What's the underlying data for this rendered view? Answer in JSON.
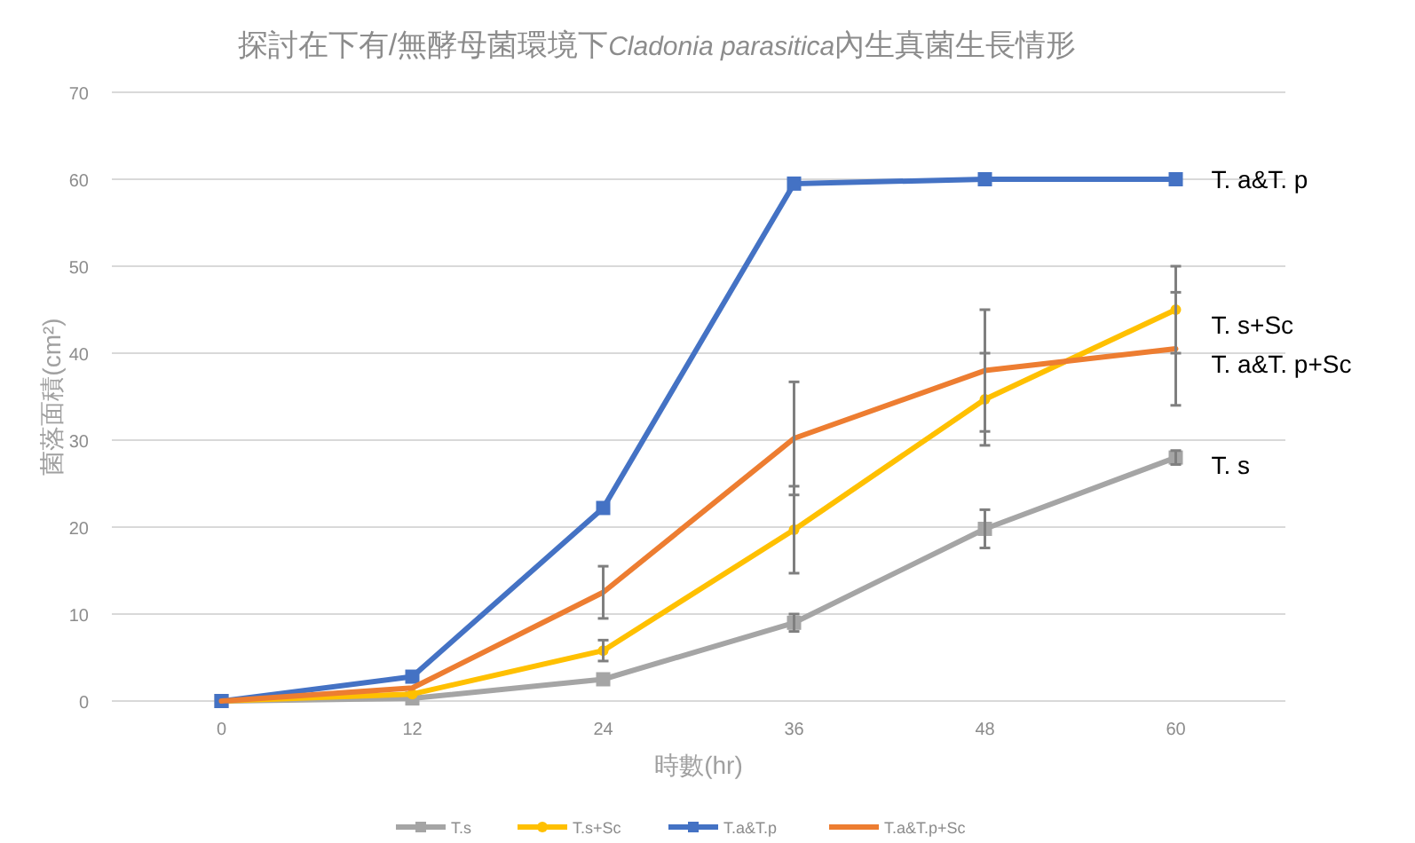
{
  "chart_data": {
    "type": "line",
    "title": "探討在下有/無酵母菌環境下Cladonia parasitica內生真菌生長情形",
    "xlabel": "時數(hr)",
    "ylabel": "菌落面積(cm²)",
    "categories": [
      "0",
      "12",
      "24",
      "36",
      "48",
      "60"
    ],
    "ylim": [
      0,
      70
    ],
    "yticks": [
      0,
      10,
      20,
      30,
      40,
      50,
      60,
      70
    ],
    "grid": "y",
    "legend": "bottom",
    "series": [
      {
        "name": "T.s",
        "color": "#a5a5a5",
        "marker": "square",
        "values": [
          0,
          0.3,
          2.5,
          9,
          19.8,
          28
        ],
        "errors": [
          null,
          null,
          null,
          1,
          2.2,
          0.8
        ]
      },
      {
        "name": "T.s+Sc",
        "color": "#ffc000",
        "marker": "circle",
        "values": [
          0,
          0.8,
          5.8,
          19.7,
          34.7,
          45
        ],
        "errors": [
          null,
          null,
          1.2,
          5,
          5.3,
          5
        ]
      },
      {
        "name": "T.a&T.p",
        "color": "#4472c4",
        "marker": "square",
        "values": [
          0,
          2.8,
          22.2,
          59.5,
          60,
          60
        ]
      },
      {
        "name": "T.a&T.p+Sc",
        "color": "#ed7d31",
        "marker": "none",
        "values": [
          0,
          1.5,
          12.5,
          30.2,
          38,
          40.5
        ],
        "errors": [
          null,
          null,
          3,
          6.5,
          7,
          6.5
        ]
      }
    ],
    "annotations": [
      {
        "text": "T. a&T. p",
        "x": "60",
        "y": 60
      },
      {
        "text": "T. s+Sc",
        "x": "60",
        "y": 43.3
      },
      {
        "text": "T. a&T. p+Sc",
        "x": "60",
        "y": 38.8
      },
      {
        "text": "T. s",
        "x": "60",
        "y": 27.1
      }
    ]
  }
}
